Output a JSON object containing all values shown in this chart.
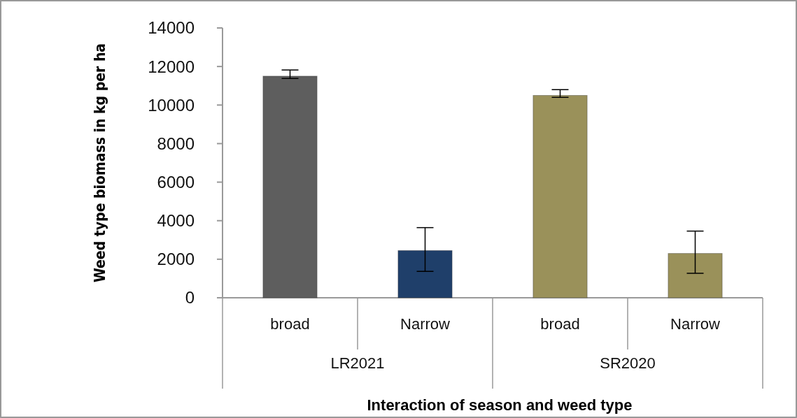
{
  "chart_data": {
    "type": "bar",
    "xlabel": "Interaction of season and weed type",
    "ylabel": "Weed type biomass in kg per ha",
    "categories": [
      "broad",
      "Narrow",
      "broad",
      "Narrow"
    ],
    "values": [
      11500,
      2450,
      10500,
      2300
    ],
    "colors": [
      "#5e5e5e",
      "#1f3f6a",
      "#9a915a",
      "#9a915a"
    ],
    "errors": [
      [
        11380,
        11820
      ],
      [
        1370,
        3640
      ],
      [
        10400,
        10800
      ],
      [
        1270,
        3460
      ]
    ],
    "annotations": [
      "LR2021",
      "SR2020"
    ],
    "ylim": [
      0,
      14000
    ],
    "yticks": [
      0,
      2000,
      4000,
      6000,
      8000,
      10000,
      12000,
      14000
    ],
    "grid": false
  }
}
